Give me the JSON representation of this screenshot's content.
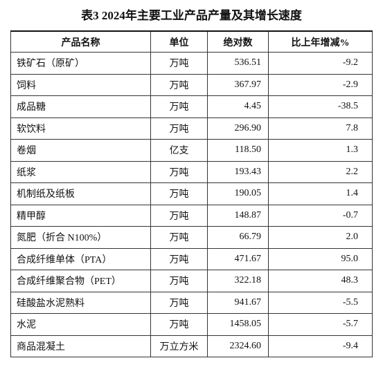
{
  "title": "表3  2024年主要工业产品产量及其增长速度",
  "table": {
    "header": [
      "产品名称",
      "单位",
      "绝对数",
      "比上年增减%"
    ],
    "rows": [
      [
        "铁矿石（原矿）",
        "万吨",
        "536.51",
        "-9.2"
      ],
      [
        "饲料",
        "万吨",
        "367.97",
        "-2.9"
      ],
      [
        "成品糖",
        "万吨",
        "4.45",
        "-38.5"
      ],
      [
        "软饮料",
        "万吨",
        "296.90",
        "7.8"
      ],
      [
        "卷烟",
        "亿支",
        "118.50",
        "1.3"
      ],
      [
        "纸浆",
        "万吨",
        "193.43",
        "2.2"
      ],
      [
        "机制纸及纸板",
        "万吨",
        "190.05",
        "1.4"
      ],
      [
        "精甲醇",
        "万吨",
        "148.87",
        "-0.7"
      ],
      [
        "氮肥（折合 N100%）",
        "万吨",
        "66.79",
        "2.0"
      ],
      [
        "合成纤维单体（PTA）",
        "万吨",
        "471.67",
        "95.0"
      ],
      [
        "合成纤维聚合物（PET）",
        "万吨",
        "322.18",
        "48.3"
      ],
      [
        "硅酸盐水泥熟料",
        "万吨",
        "941.67",
        "-5.5"
      ],
      [
        "水泥",
        "万吨",
        "1458.05",
        "-5.7"
      ],
      [
        "商品混凝土",
        "万立方米",
        "2324.60",
        "-9.4"
      ]
    ]
  }
}
